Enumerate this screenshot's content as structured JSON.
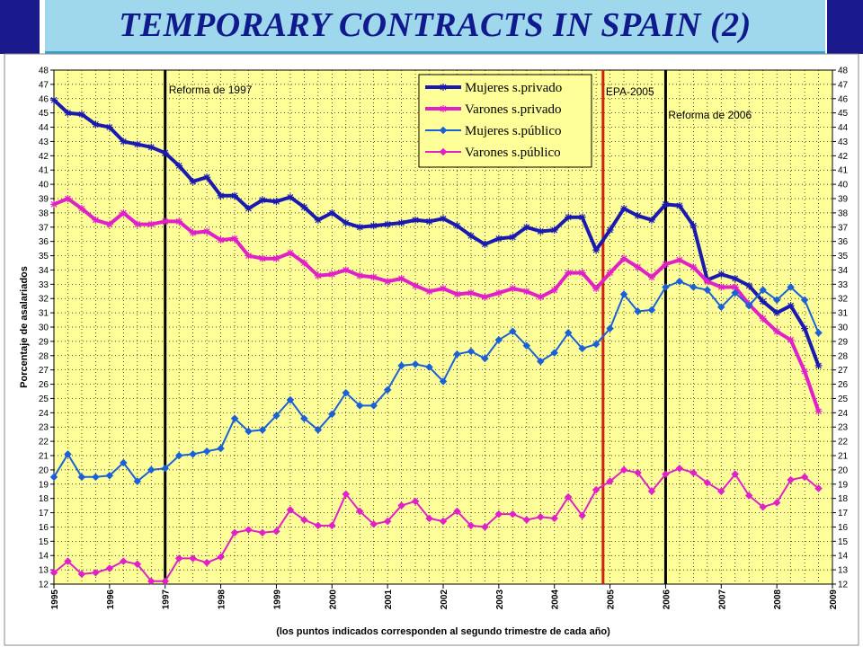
{
  "title": "TEMPORARY CONTRACTS IN SPAIN (2)",
  "chart_data": {
    "type": "line",
    "ylabel": "Porcentaje de asalariados",
    "xlabel": "(los puntos indicados corresponden al segundo trimestre de cada año)",
    "ylim": [
      12,
      48
    ],
    "y_ticks": [
      12,
      13,
      14,
      15,
      16,
      17,
      18,
      19,
      20,
      21,
      22,
      23,
      24,
      25,
      26,
      27,
      28,
      29,
      30,
      31,
      32,
      33,
      34,
      35,
      36,
      37,
      38,
      39,
      40,
      41,
      42,
      43,
      44,
      45,
      46,
      47,
      48
    ],
    "x_ticks": [
      "1995",
      "1996",
      "1997",
      "1998",
      "1999",
      "2000",
      "2001",
      "2002",
      "2003",
      "2004",
      "2005",
      "2006",
      "2007",
      "2008",
      "2009"
    ],
    "x_start": 1995.0,
    "x_step": 0.25,
    "grid": true,
    "legend_position": "top-center",
    "annotations": [
      {
        "text": "Reforma de 1997",
        "x": 1997.0,
        "color": "#000000"
      },
      {
        "text": "EPA-2005",
        "x": 2004.875,
        "color": "#d02010"
      },
      {
        "text": "Reforma de 2006",
        "x": 2006.0,
        "color": "#000000"
      }
    ],
    "series": [
      {
        "name": "Mujeres s.privado",
        "color": "#1a1ab0",
        "marker": "asterisk",
        "width": 4,
        "values": [
          45.9,
          45.0,
          44.9,
          44.2,
          44.0,
          43.0,
          42.8,
          42.6,
          42.2,
          41.3,
          40.2,
          40.5,
          39.2,
          39.2,
          38.3,
          38.9,
          38.8,
          39.1,
          38.4,
          37.5,
          38.0,
          37.3,
          37.0,
          37.1,
          37.2,
          37.3,
          37.5,
          37.4,
          37.6,
          37.1,
          36.4,
          35.8,
          36.2,
          36.3,
          37.0,
          36.7,
          36.8,
          37.7,
          37.7,
          35.4,
          36.8,
          38.3,
          37.8,
          37.5,
          38.6,
          38.5,
          37.1,
          33.3,
          33.7,
          33.4,
          32.9,
          31.8,
          31.0,
          31.5,
          29.9,
          27.3
        ]
      },
      {
        "name": "Varones s.privado",
        "color": "#e020c8",
        "marker": "asterisk",
        "width": 4,
        "values": [
          38.6,
          39.0,
          38.3,
          37.5,
          37.2,
          38.0,
          37.2,
          37.2,
          37.4,
          37.4,
          36.6,
          36.7,
          36.1,
          36.2,
          35.0,
          34.8,
          34.8,
          35.2,
          34.5,
          33.6,
          33.7,
          34.0,
          33.6,
          33.5,
          33.2,
          33.4,
          32.9,
          32.5,
          32.7,
          32.3,
          32.4,
          32.1,
          32.4,
          32.7,
          32.5,
          32.1,
          32.6,
          33.8,
          33.8,
          32.7,
          33.8,
          34.8,
          34.2,
          33.5,
          34.4,
          34.7,
          34.2,
          33.2,
          32.8,
          32.8,
          31.6,
          30.6,
          29.7,
          29.1,
          26.9,
          24.1
        ]
      },
      {
        "name": "Mujeres s.público",
        "color": "#1a60d8",
        "marker": "diamond",
        "width": 2,
        "values": [
          19.5,
          21.1,
          19.5,
          19.5,
          19.6,
          20.5,
          19.2,
          20.0,
          20.1,
          21.0,
          21.1,
          21.3,
          21.5,
          23.6,
          22.7,
          22.8,
          23.8,
          24.9,
          23.6,
          22.8,
          23.9,
          25.4,
          24.5,
          24.5,
          25.6,
          27.3,
          27.4,
          27.2,
          26.2,
          28.1,
          28.3,
          27.8,
          29.1,
          29.7,
          28.7,
          27.6,
          28.2,
          29.6,
          28.5,
          28.8,
          29.9,
          32.3,
          31.1,
          31.2,
          32.8,
          33.2,
          32.8,
          32.6,
          31.4,
          32.4,
          31.5,
          32.6,
          31.9,
          32.8,
          31.9,
          29.6
        ]
      },
      {
        "name": "Varones s.público",
        "color": "#e020c8",
        "marker": "diamond",
        "width": 2,
        "values": [
          12.8,
          13.6,
          12.7,
          12.8,
          13.1,
          13.6,
          13.4,
          12.2,
          12.2,
          13.8,
          13.8,
          13.5,
          13.9,
          15.6,
          15.8,
          15.6,
          15.7,
          17.2,
          16.5,
          16.1,
          16.1,
          18.3,
          17.1,
          16.2,
          16.4,
          17.5,
          17.8,
          16.6,
          16.4,
          17.1,
          16.1,
          16.0,
          16.9,
          16.9,
          16.5,
          16.7,
          16.6,
          18.1,
          16.8,
          18.6,
          19.2,
          20.0,
          19.8,
          18.5,
          19.7,
          20.1,
          19.8,
          19.1,
          18.5,
          19.7,
          18.2,
          17.4,
          17.7,
          19.3,
          19.5,
          18.7
        ]
      }
    ]
  }
}
